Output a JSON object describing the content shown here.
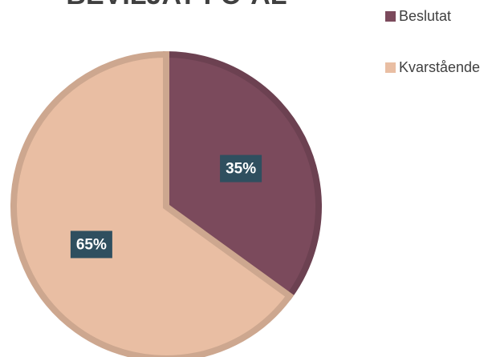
{
  "chart_data": {
    "type": "pie",
    "title": "BEVILJAT FÖ-AL",
    "categories": [
      "Beslutat",
      "Kvarstående"
    ],
    "values": [
      35,
      65
    ],
    "value_labels": [
      "35%",
      "65%"
    ],
    "colors": [
      "#7b4a5c",
      "#e9bea3"
    ],
    "legend": "right"
  }
}
